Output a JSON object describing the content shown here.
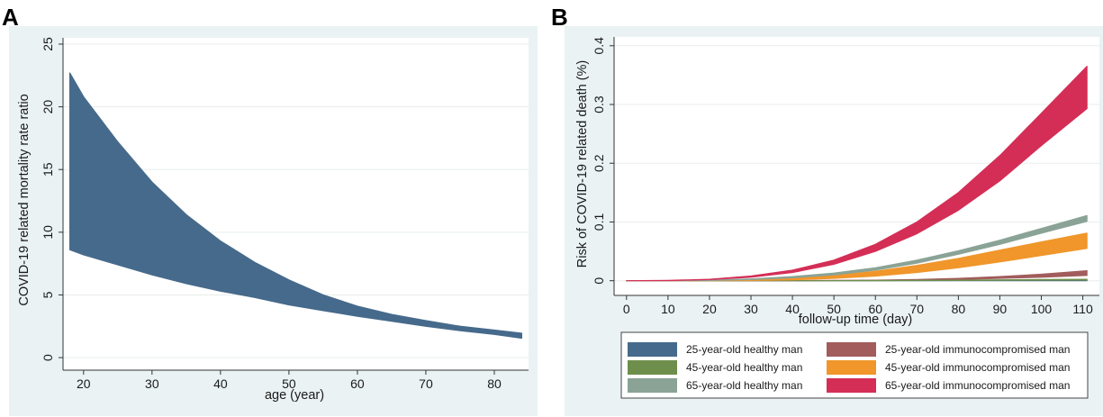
{
  "panels": {
    "a_label": "A",
    "b_label": "B"
  },
  "chart_data": [
    {
      "id": "A",
      "type": "area",
      "xlabel": "age (year)",
      "ylabel": "COVID-19 related mortality rate ratio",
      "xlim": [
        17,
        85
      ],
      "ylim": [
        -1,
        25.5
      ],
      "xticks": [
        20,
        30,
        40,
        50,
        60,
        70,
        80
      ],
      "yticks": [
        0,
        5,
        10,
        15,
        20,
        25
      ],
      "grid": true,
      "series": [
        {
          "name": "mortality rate ratio band",
          "color": "#466a8b",
          "x": [
            18,
            20,
            25,
            30,
            35,
            40,
            45,
            50,
            55,
            60,
            65,
            70,
            75,
            80,
            84
          ],
          "lower": [
            8.6,
            8.2,
            7.4,
            6.6,
            5.9,
            5.3,
            4.8,
            4.2,
            3.75,
            3.3,
            2.9,
            2.5,
            2.15,
            1.85,
            1.55
          ],
          "upper": [
            22.7,
            20.8,
            17.2,
            14.0,
            11.4,
            9.3,
            7.6,
            6.2,
            5.0,
            4.1,
            3.45,
            2.95,
            2.5,
            2.2,
            1.95
          ]
        }
      ]
    },
    {
      "id": "B",
      "type": "area",
      "xlabel": "follow-up time (day)",
      "ylabel": "Risk of COVID-19 related death (%)",
      "xlim": [
        -3,
        114
      ],
      "ylim": [
        -0.025,
        0.415
      ],
      "xticks": [
        0,
        10,
        20,
        30,
        40,
        50,
        60,
        70,
        80,
        90,
        100,
        110
      ],
      "yticks": [
        0,
        0.1,
        0.2,
        0.3,
        0.4
      ],
      "grid": true,
      "legend_position": "bottom",
      "series": [
        {
          "name": "25-year-old healthy man",
          "color": "#466a8b",
          "x": [
            0,
            20,
            40,
            60,
            80,
            100,
            111
          ],
          "lower": [
            0,
            0,
            0,
            0,
            0,
            0,
            0
          ],
          "upper": [
            0,
            0,
            0,
            0,
            0.0005,
            0.001,
            0.0012
          ]
        },
        {
          "name": "25-year-old immunocompromised man",
          "color": "#a25c5c",
          "x": [
            0,
            20,
            40,
            60,
            70,
            80,
            90,
            100,
            111
          ],
          "lower": [
            0,
            0,
            0,
            0.0005,
            0.001,
            0.002,
            0.004,
            0.006,
            0.009
          ],
          "upper": [
            0,
            0,
            0.0002,
            0.001,
            0.002,
            0.004,
            0.007,
            0.011,
            0.017
          ]
        },
        {
          "name": "45-year-old healthy man",
          "color": "#6e8f4c",
          "x": [
            0,
            20,
            40,
            60,
            80,
            100,
            111
          ],
          "lower": [
            0,
            0,
            0,
            0,
            0.0005,
            0.001,
            0.0012
          ],
          "upper": [
            0,
            0,
            0,
            0.0003,
            0.001,
            0.002,
            0.0025
          ]
        },
        {
          "name": "45-year-old immunocompromised man",
          "color": "#f0962a",
          "x": [
            0,
            10,
            20,
            30,
            40,
            50,
            60,
            70,
            80,
            90,
            100,
            111
          ],
          "lower": [
            0,
            0,
            0,
            0.0005,
            0.0015,
            0.004,
            0.008,
            0.014,
            0.022,
            0.032,
            0.043,
            0.055
          ],
          "upper": [
            0,
            0,
            0.0005,
            0.0015,
            0.004,
            0.009,
            0.016,
            0.026,
            0.038,
            0.052,
            0.066,
            0.081
          ]
        },
        {
          "name": "65-year-old healthy man",
          "color": "#8aa396",
          "x": [
            0,
            10,
            20,
            30,
            40,
            50,
            60,
            70,
            80,
            90,
            100,
            111
          ],
          "lower": [
            0,
            0,
            0.0005,
            0.002,
            0.005,
            0.01,
            0.018,
            0.03,
            0.045,
            0.062,
            0.081,
            0.101
          ],
          "upper": [
            0,
            0,
            0.001,
            0.003,
            0.007,
            0.013,
            0.022,
            0.035,
            0.051,
            0.069,
            0.089,
            0.111
          ]
        },
        {
          "name": "65-year-old immunocompromised man",
          "color": "#d42e56",
          "x": [
            0,
            10,
            20,
            30,
            40,
            50,
            60,
            70,
            80,
            90,
            100,
            111
          ],
          "lower": [
            0,
            0.0003,
            0.002,
            0.006,
            0.014,
            0.028,
            0.05,
            0.08,
            0.12,
            0.17,
            0.23,
            0.293
          ],
          "upper": [
            0,
            0.0005,
            0.0025,
            0.008,
            0.018,
            0.035,
            0.062,
            0.1,
            0.15,
            0.213,
            0.285,
            0.365
          ]
        }
      ]
    }
  ],
  "legend": {
    "left": [
      "25-year-old healthy man",
      "45-year-old healthy man",
      "65-year-old healthy man"
    ],
    "right": [
      "25-year-old immunocompromised man",
      "45-year-old immunocompromised man",
      "65-year-old immunocompromised man"
    ]
  },
  "colors": {
    "panel_bg": "#eaf2f3",
    "plot_bg": "#ffffff",
    "grid": "#e9eded",
    "axis": "#333333"
  }
}
